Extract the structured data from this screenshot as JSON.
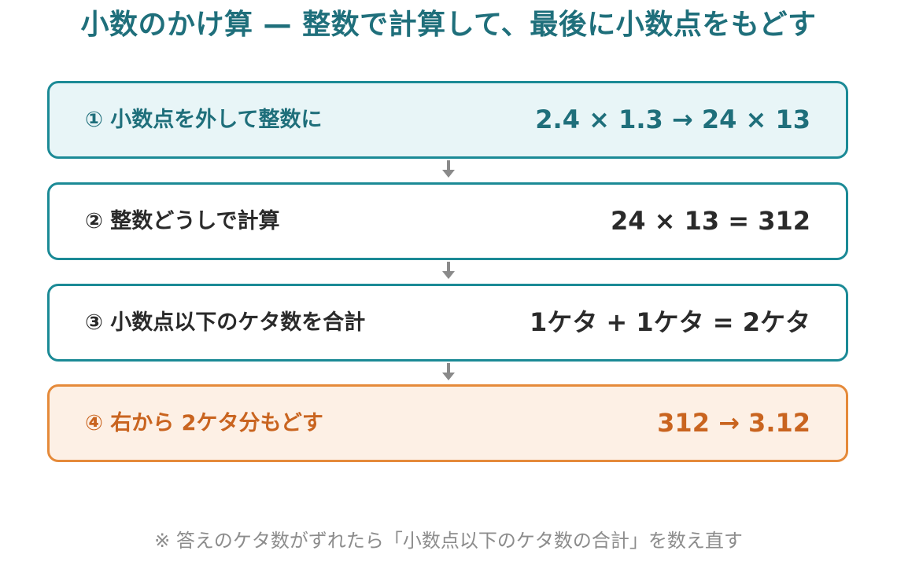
{
  "title": "小数のかけ算 — 整数で計算して、最後に小数点をもどす",
  "steps": [
    {
      "label": "① 小数点を外して整数に",
      "expr": "2.4 × 1.3 → 24 × 13"
    },
    {
      "label": "② 整数どうしで計算",
      "expr": "24 × 13 = 312"
    },
    {
      "label": "③ 小数点以下のケタ数を合計",
      "expr": "1ケタ + 1ケタ = 2ケタ"
    },
    {
      "label": "④ 右から 2ケタ分もどす",
      "expr": "312 → 3.12"
    }
  ],
  "note": "※ 答えのケタ数がずれたら「小数点以下のケタ数の合計」を数え直す",
  "colors": {
    "teal": "#1b8a96",
    "teal_text": "#1f6f7b",
    "orange": "#e58a3a",
    "orange_text": "#c9641f",
    "arrow": "#8a8a8a"
  }
}
